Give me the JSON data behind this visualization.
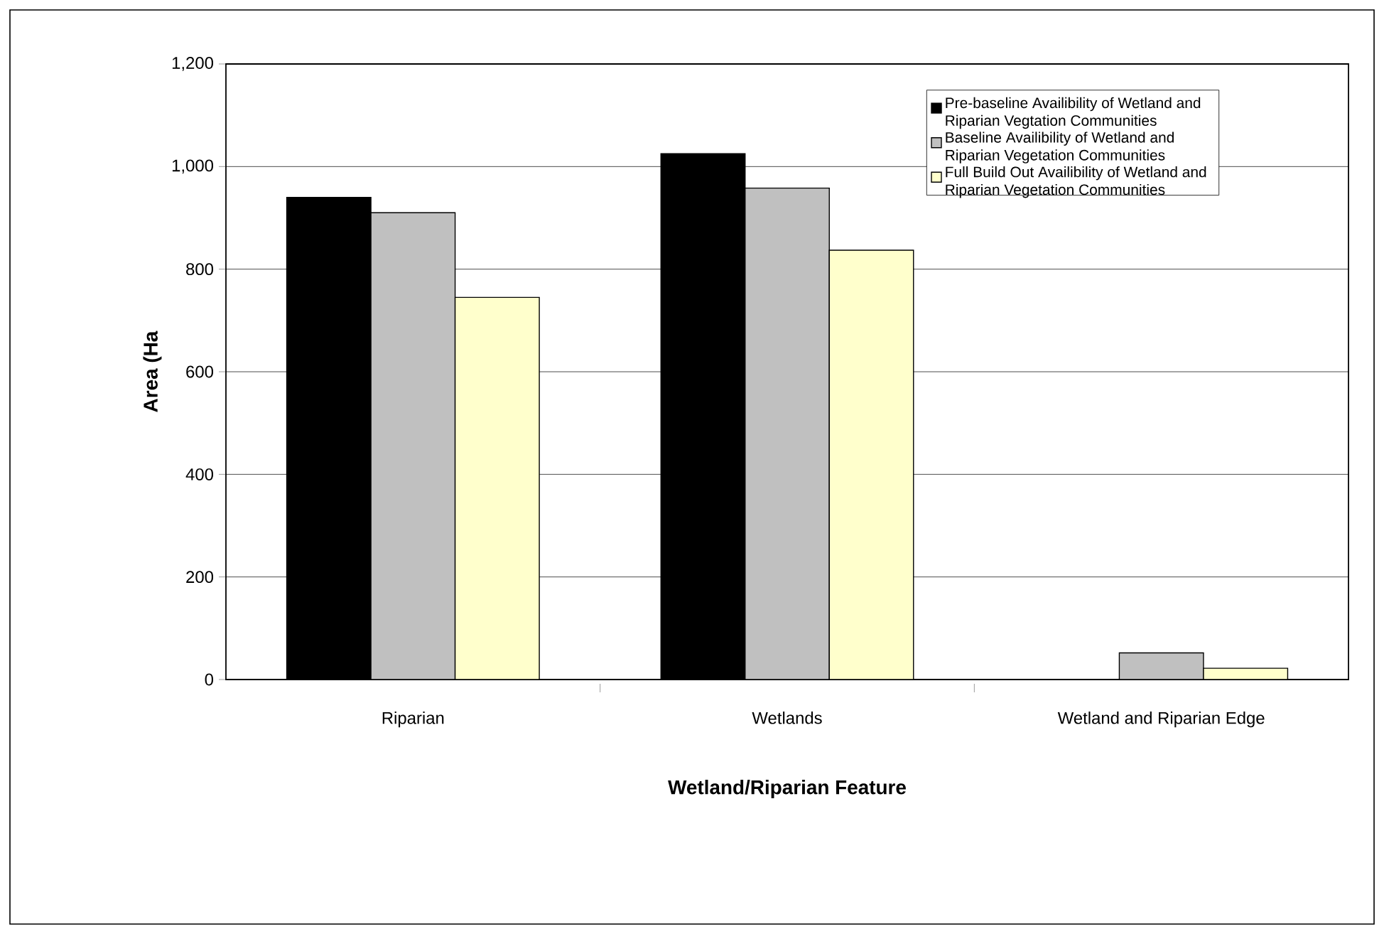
{
  "chart_data": {
    "type": "bar",
    "xlabel": "Wetland/Riparian Feature",
    "ylabel": "Area (Ha",
    "categories": [
      "Riparian",
      "Wetlands",
      "Wetland and Riparian Edge"
    ],
    "series": [
      {
        "name": "Pre-baseline Availibility of Wetland and Riparian Vegtation Communities",
        "color": "#000000",
        "values": [
          940,
          1025,
          0
        ]
      },
      {
        "name": "Baseline Availibility of Wetland and Riparian Vegetation Communities",
        "color": "#c0c0c0",
        "values": [
          910,
          958,
          52
        ]
      },
      {
        "name": "Full Build Out Availibility of Wetland and Riparian Vegetation Communities",
        "color": "#ffffcc",
        "values": [
          745,
          837,
          22
        ]
      }
    ],
    "ylim": [
      0,
      1200
    ],
    "yticks": [
      {
        "value": 0,
        "label": "0"
      },
      {
        "value": 200,
        "label": "200"
      },
      {
        "value": 400,
        "label": "400"
      },
      {
        "value": 600,
        "label": "600"
      },
      {
        "value": 800,
        "label": "800"
      },
      {
        "value": 1000,
        "label": "1,000"
      },
      {
        "value": 1200,
        "label": "1,200"
      }
    ],
    "grid": "y",
    "legend": "top right"
  }
}
